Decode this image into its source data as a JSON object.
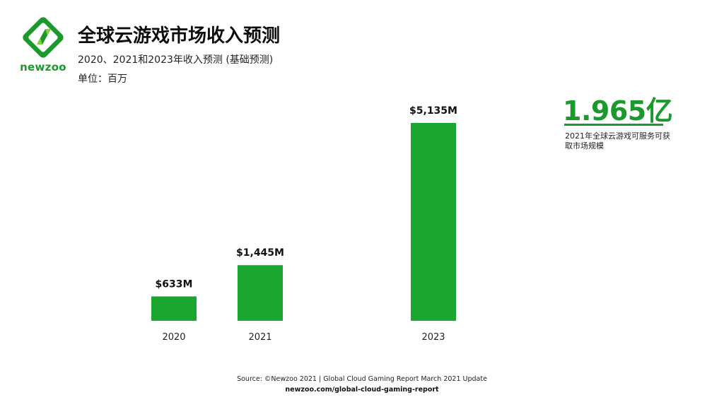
{
  "brand": {
    "name": "newzoo",
    "color": "#1a9a2c",
    "icon": "newzoo-logo-icon"
  },
  "header": {
    "title": "全球云游戏市场收入预测",
    "subtitle": "2020、2021和2023年收入预测 (基础预测)",
    "unit": "单位：百万"
  },
  "callout": {
    "number": "1.965亿",
    "description": "2021年全球云游戏可服务可获取市场规模"
  },
  "footer": {
    "source": "Source: ©Newzoo 2021 | Global Cloud Gaming Report March 2021 Update",
    "link": "newzoo.com/global-cloud-gaming-report"
  },
  "chart_data": {
    "type": "bar",
    "categories": [
      "2020",
      "2021",
      "2023"
    ],
    "values": [
      633,
      1445,
      5135
    ],
    "data_labels": [
      "$633M",
      "$1,445M",
      "$5,135M"
    ],
    "title": "全球云游戏市场收入预测",
    "xlabel": "",
    "ylabel": "",
    "ylim": [
      0,
      5135
    ],
    "grid": false,
    "legend": "none",
    "bar_color": "#1ba631"
  }
}
